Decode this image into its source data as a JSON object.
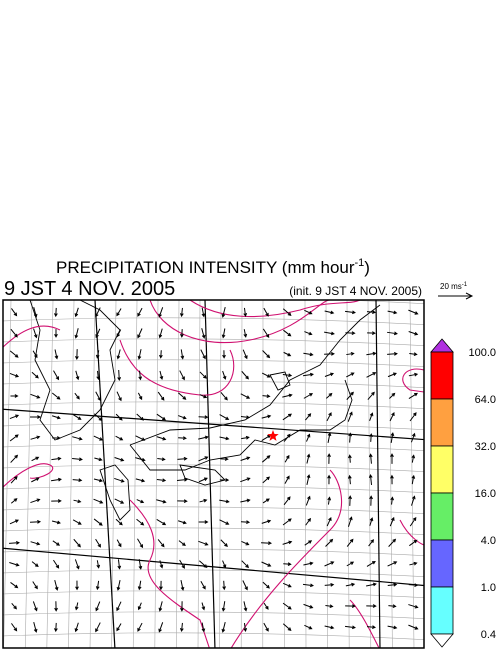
{
  "header": {
    "title": "PRECIPITATION INTENSITY (mm hour",
    "title_superscript": "-1",
    "title_end": ")",
    "valid_time": "9 JST 4 NOV. 2005",
    "init_time": "(init. 9 JST 4 NOV. 2005)"
  },
  "reference_vector": {
    "label": "20 ms",
    "superscript": "-1"
  },
  "colorbar": {
    "labels": [
      "100.0",
      "64.0",
      "32.0",
      "16.0",
      "4.0",
      "1.0",
      "0.4"
    ],
    "colors": [
      "#ff0000",
      "#ffa040",
      "#ffff66",
      "#66ee66",
      "#6666ff",
      "#66ffff"
    ],
    "over_color": "#b030e0",
    "under_color": "#ffffff"
  }
}
